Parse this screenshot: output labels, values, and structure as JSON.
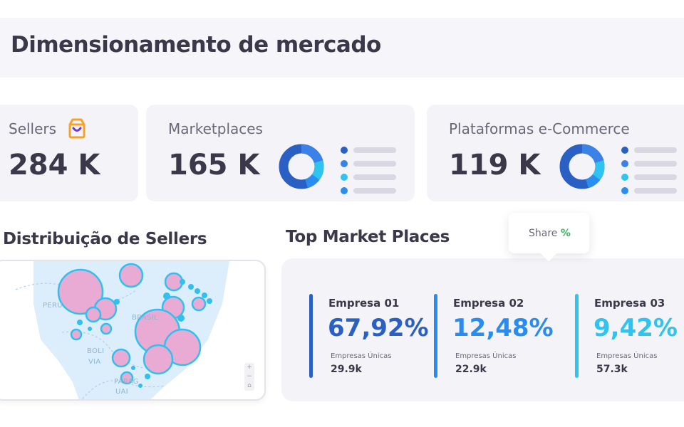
{
  "header": {
    "title": "Dimensionamento de mercado"
  },
  "cards": {
    "sellers": {
      "label": "Sellers",
      "value": "284 K",
      "icon": "shopping-bag-icon",
      "icon_color": "#f7a12a"
    },
    "marketplaces": {
      "label": "Marketplaces",
      "value": "165 K"
    },
    "ecommerce": {
      "label": "Plataformas e-Commerce",
      "value": "119 K"
    }
  },
  "legend_colors": [
    "#2a5fc4",
    "#3a82e8",
    "#2fc3f0",
    "#2a8df0"
  ],
  "distribution": {
    "title": "Distribuição de Sellers",
    "map_labels": {
      "peru": "PERU",
      "brasil": "BRASIL",
      "bolivia_1": "BOLI",
      "bolivia_2": "VIA",
      "paraguai_1": "PARAG",
      "paraguai_2": "UAI"
    },
    "zoom": {
      "in": "+",
      "out": "−",
      "reset": "⌂"
    }
  },
  "top_marketplaces": {
    "title": "Top Market Places",
    "tooltip": {
      "label": "Share",
      "symbol": "%"
    },
    "companies": [
      {
        "name": "Empresa 01",
        "share": "67,92%",
        "sub_label": "Empresas Únicas",
        "count": "29.9k",
        "color": "#2a5fc4"
      },
      {
        "name": "Empresa 02",
        "share": "12,48%",
        "sub_label": "Empresas Únicas",
        "count": "22.9k",
        "color": "#2b8cf0"
      },
      {
        "name": "Empresa 03",
        "share": "9,42%",
        "sub_label": "Empresas Únicas",
        "count": "57.3k",
        "color": "#2fc3f0"
      }
    ]
  }
}
